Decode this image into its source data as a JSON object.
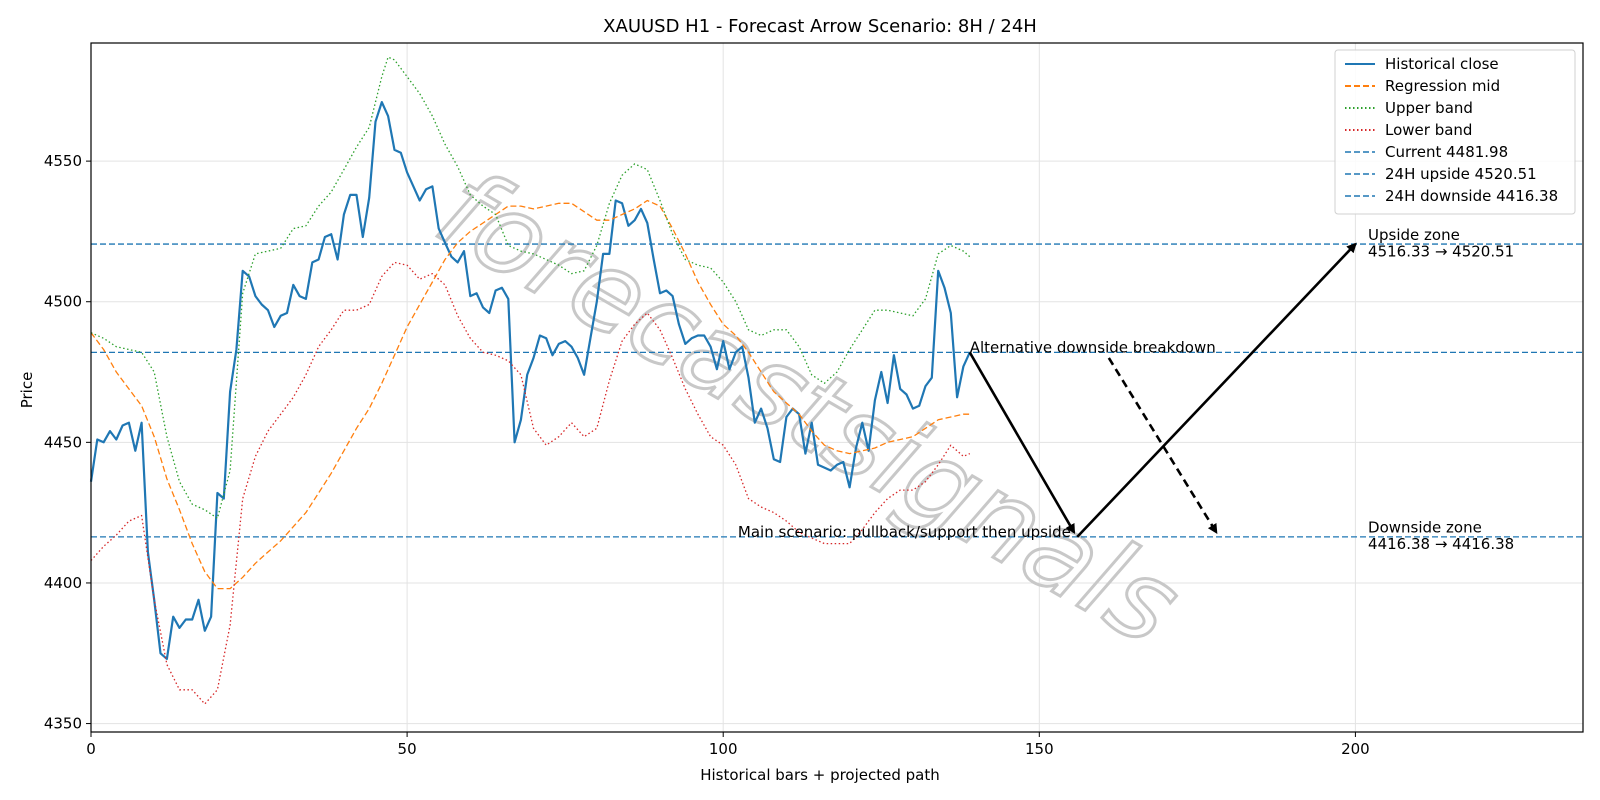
{
  "chart_data": {
    "type": "line",
    "title": "XAUUSD H1 - Forecast Arrow Scenario: 8H / 24H",
    "xlabel": "Historical bars + projected path",
    "ylabel": "Price",
    "xlim": [
      0,
      236
    ],
    "ylim": [
      4347,
      4592
    ],
    "x_ticks": [
      0,
      50,
      100,
      150,
      200
    ],
    "y_ticks": [
      4350,
      4400,
      4450,
      4500,
      4550
    ],
    "grid": true,
    "legend_position": "top-right",
    "watermark": "forecastsignals",
    "series": [
      {
        "name": "Historical close",
        "style": "solid",
        "color": "#1f77b4",
        "x": [
          0,
          1,
          2,
          3,
          4,
          5,
          6,
          7,
          8,
          9,
          10,
          11,
          12,
          13,
          14,
          15,
          16,
          17,
          18,
          19,
          20,
          21,
          22,
          23,
          24,
          25,
          26,
          27,
          28,
          29,
          30,
          31,
          32,
          33,
          34,
          35,
          36,
          37,
          38,
          39,
          40,
          41,
          42,
          43,
          44,
          45,
          46,
          47,
          48,
          49,
          50,
          51,
          52,
          53,
          54,
          55,
          56,
          57,
          58,
          59,
          60,
          61,
          62,
          63,
          64,
          65,
          66,
          67,
          68,
          69,
          70,
          71,
          72,
          73,
          74,
          75,
          76,
          77,
          78,
          79,
          80,
          81,
          82,
          83,
          84,
          85,
          86,
          87,
          88,
          89,
          90,
          91,
          92,
          93,
          94,
          95,
          96,
          97,
          98,
          99,
          100,
          101,
          102,
          103,
          104,
          105,
          106,
          107,
          108,
          109,
          110,
          111,
          112,
          113,
          114,
          115,
          116,
          117,
          118,
          119,
          120,
          121,
          122,
          123,
          124,
          125,
          126,
          127,
          128,
          129,
          130,
          131,
          132,
          133,
          134,
          135,
          136,
          137,
          138,
          139
        ],
        "values": [
          4436,
          4451,
          4450,
          4454,
          4451,
          4456,
          4457,
          4447,
          4457,
          4411,
          4394,
          4375,
          4373,
          4388,
          4384,
          4387,
          4387,
          4394,
          4383,
          4388,
          4432,
          4430,
          4468,
          4483,
          4511,
          4509,
          4502,
          4499,
          4497,
          4491,
          4495,
          4496,
          4506,
          4502,
          4501,
          4514,
          4515,
          4523,
          4524,
          4515,
          4531,
          4538,
          4538,
          4523,
          4537,
          4564,
          4571,
          4566,
          4554,
          4553,
          4546,
          4541,
          4536,
          4540,
          4541,
          4526,
          4521,
          4516,
          4514,
          4518,
          4502,
          4503,
          4498,
          4496,
          4504,
          4505,
          4501,
          4450,
          4458,
          4474,
          4480,
          4488,
          4487,
          4481,
          4485,
          4486,
          4484,
          4480,
          4474,
          4487,
          4500,
          4517,
          4517,
          4536,
          4535,
          4527,
          4529,
          4533,
          4528,
          4515,
          4503,
          4504,
          4502,
          4492,
          4485,
          4487,
          4488,
          4488,
          4484,
          4476,
          4486,
          4476,
          4482,
          4484,
          4473,
          4457,
          4462,
          4455,
          4444,
          4443,
          4459,
          4462,
          4460,
          4446,
          4457,
          4442,
          4441,
          4440,
          4442,
          4443,
          4434,
          4448,
          4457,
          4447,
          4465,
          4475,
          4464,
          4481,
          4469,
          4467,
          4462,
          4463,
          4470,
          4473,
          4511,
          4505,
          4496,
          4466,
          4477,
          4482
        ]
      },
      {
        "name": "Regression mid",
        "style": "dashed",
        "color": "#ff7f0e",
        "x": [
          0,
          2,
          4,
          6,
          8,
          10,
          12,
          14,
          16,
          18,
          20,
          22,
          24,
          26,
          28,
          30,
          32,
          34,
          36,
          38,
          40,
          42,
          44,
          46,
          48,
          50,
          52,
          54,
          56,
          58,
          60,
          62,
          64,
          66,
          68,
          70,
          72,
          74,
          76,
          78,
          80,
          82,
          84,
          86,
          88,
          90,
          92,
          94,
          96,
          98,
          100,
          102,
          104,
          106,
          108,
          110,
          112,
          114,
          116,
          118,
          120,
          122,
          124,
          126,
          128,
          130,
          132,
          134,
          136,
          138,
          139
        ],
        "values": [
          4489,
          4483,
          4475,
          4469,
          4463,
          4452,
          4437,
          4426,
          4414,
          4404,
          4398,
          4398,
          4402,
          4407,
          4411,
          4415,
          4420,
          4425,
          4432,
          4439,
          4447,
          4455,
          4462,
          4471,
          4481,
          4491,
          4499,
          4507,
          4515,
          4521,
          4525,
          4528,
          4531,
          4534,
          4534,
          4533,
          4534,
          4535,
          4535,
          4532,
          4529,
          4529,
          4531,
          4533,
          4536,
          4534,
          4526,
          4517,
          4507,
          4499,
          4492,
          4488,
          4482,
          4475,
          4468,
          4464,
          4460,
          4454,
          4449,
          4447,
          4446,
          4447,
          4448,
          4450,
          4451,
          4452,
          4455,
          4458,
          4459,
          4460,
          4460
        ]
      },
      {
        "name": "Upper band",
        "style": "dotted",
        "color": "#2ca02c",
        "x": [
          0,
          2,
          4,
          6,
          8,
          10,
          12,
          14,
          16,
          18,
          20,
          22,
          24,
          26,
          28,
          30,
          32,
          34,
          36,
          38,
          40,
          42,
          44,
          46,
          47,
          48,
          50,
          52,
          54,
          56,
          58,
          60,
          62,
          64,
          66,
          68,
          70,
          72,
          74,
          76,
          78,
          80,
          82,
          84,
          86,
          88,
          90,
          92,
          94,
          96,
          98,
          100,
          102,
          104,
          106,
          108,
          110,
          112,
          114,
          116,
          118,
          120,
          122,
          124,
          126,
          128,
          130,
          132,
          134,
          136,
          138,
          139
        ],
        "values": [
          4489,
          4487,
          4484,
          4483,
          4482,
          4475,
          4452,
          4436,
          4428,
          4426,
          4423,
          4440,
          4503,
          4517,
          4518,
          4519,
          4526,
          4527,
          4534,
          4539,
          4547,
          4555,
          4562,
          4580,
          4587,
          4586,
          4580,
          4574,
          4566,
          4556,
          4548,
          4538,
          4534,
          4531,
          4520,
          4518,
          4517,
          4515,
          4513,
          4510,
          4511,
          4520,
          4535,
          4545,
          4549,
          4547,
          4536,
          4524,
          4515,
          4513,
          4512,
          4507,
          4500,
          4490,
          4488,
          4490,
          4490,
          4484,
          4474,
          4471,
          4475,
          4483,
          4490,
          4497,
          4497,
          4496,
          4495,
          4501,
          4517,
          4520,
          4518,
          4516
        ]
      },
      {
        "name": "Lower band",
        "style": "dotted",
        "color": "#d62728",
        "x": [
          0,
          2,
          4,
          6,
          8,
          10,
          12,
          14,
          16,
          18,
          20,
          22,
          24,
          26,
          28,
          30,
          32,
          34,
          36,
          38,
          40,
          42,
          44,
          46,
          48,
          50,
          52,
          54,
          56,
          58,
          60,
          62,
          64,
          66,
          68,
          70,
          72,
          74,
          76,
          78,
          80,
          82,
          84,
          86,
          88,
          90,
          92,
          94,
          96,
          98,
          100,
          102,
          104,
          106,
          108,
          110,
          112,
          114,
          116,
          118,
          120,
          122,
          124,
          126,
          128,
          130,
          132,
          134,
          136,
          138,
          139
        ],
        "values": [
          4408,
          4413,
          4417,
          4422,
          4424,
          4394,
          4371,
          4362,
          4362,
          4357,
          4362,
          4385,
          4430,
          4445,
          4454,
          4460,
          4466,
          4474,
          4484,
          4490,
          4497,
          4497,
          4499,
          4509,
          4514,
          4513,
          4508,
          4510,
          4506,
          4495,
          4487,
          4482,
          4481,
          4479,
          4474,
          4455,
          4449,
          4452,
          4457,
          4452,
          4455,
          4472,
          4486,
          4492,
          4496,
          4490,
          4480,
          4469,
          4460,
          4452,
          4449,
          4442,
          4430,
          4427,
          4425,
          4422,
          4418,
          4416,
          4414,
          4414,
          4414,
          4419,
          4425,
          4430,
          4433,
          4433,
          4436,
          4442,
          4449,
          4445,
          4446
        ]
      }
    ],
    "hlines": [
      {
        "name": "Current 4481.98",
        "y": 4481.98,
        "style": "dashed",
        "color": "#1f77b4"
      },
      {
        "name": "24H upside 4520.51",
        "y": 4520.51,
        "style": "dashed",
        "color": "#1f77b4"
      },
      {
        "name": "24H downside 4416.38",
        "y": 4416.38,
        "style": "dashed",
        "color": "#1f77b4"
      }
    ],
    "arrows": [
      {
        "from": [
          139,
          4481.98
        ],
        "to": [
          155.5,
          4418
        ],
        "style": "solid"
      },
      {
        "from": [
          156,
          4416.38
        ],
        "to": [
          200,
          4520.51
        ],
        "style": "solid"
      },
      {
        "from": [
          161,
          4480
        ],
        "to": [
          178,
          4418
        ],
        "style": "dashed"
      }
    ],
    "annotations": [
      {
        "id": "alt",
        "text": "Alternative downside breakdown",
        "x": 139,
        "y": 4482
      },
      {
        "id": "main",
        "text": "Main scenario: pullback/support then upside",
        "x": 155,
        "y": 4416.38
      },
      {
        "id": "upside_zone",
        "text": "Upside zone",
        "x": 202,
        "y": 4522
      },
      {
        "id": "upside_range",
        "text": "4516.33 → 4520.51",
        "x": 202,
        "y": 4516
      },
      {
        "id": "downside_zone",
        "text": "Downside zone",
        "x": 202,
        "y": 4418
      },
      {
        "id": "downside_range",
        "text": "4416.38 → 4416.38",
        "x": 202,
        "y": 4412
      }
    ]
  }
}
